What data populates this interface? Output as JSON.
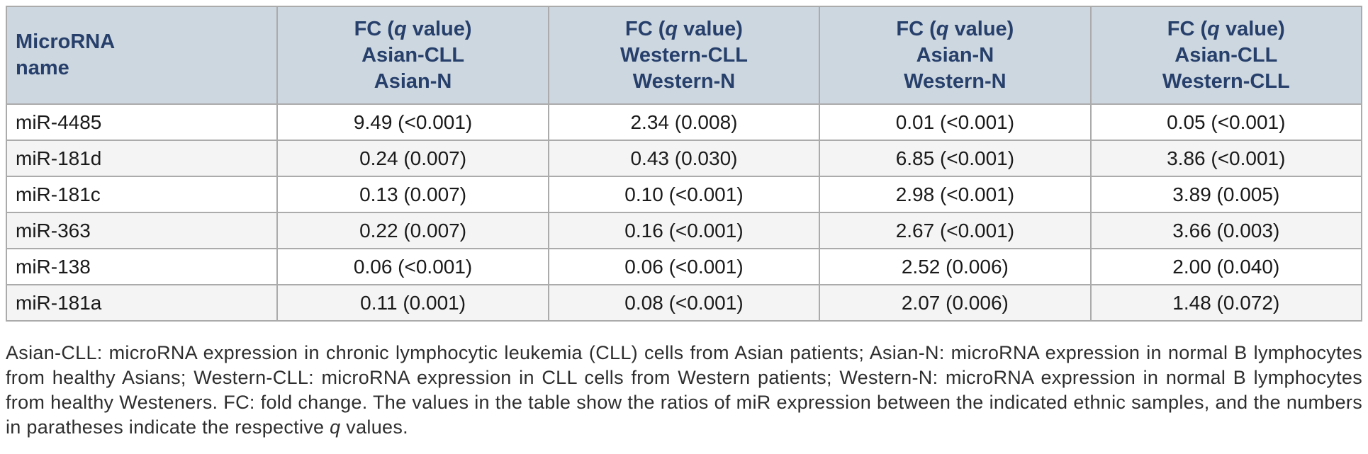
{
  "colors": {
    "header_bg": "#cdd7e0",
    "header_text": "#27406b",
    "border": "#ababab",
    "row_alt_bg": "#f4f4f4",
    "body_text": "#1a1a1a",
    "page_bg": "#ffffff"
  },
  "table": {
    "header": {
      "name_col": {
        "line1": "MicroRNA",
        "line2": "name"
      },
      "fc_label": {
        "pre": "FC (",
        "q": "q",
        "post": " value)"
      },
      "fc_cols": [
        {
          "numerator": "Asian-CLL",
          "denominator": "Asian-N"
        },
        {
          "numerator": "Western-CLL",
          "denominator": "Western-N"
        },
        {
          "numerator": "Asian-N",
          "denominator": "Western-N"
        },
        {
          "numerator": "Asian-CLL",
          "denominator": "Western-CLL"
        }
      ]
    },
    "rows": [
      {
        "name": "miR-4485",
        "values": [
          "9.49 (<0.001)",
          "2.34 (0.008)",
          "0.01 (<0.001)",
          "0.05 (<0.001)"
        ]
      },
      {
        "name": "miR-181d",
        "values": [
          "0.24 (0.007)",
          "0.43 (0.030)",
          "6.85 (<0.001)",
          "3.86 (<0.001)"
        ]
      },
      {
        "name": "miR-181c",
        "values": [
          "0.13 (0.007)",
          "0.10 (<0.001)",
          "2.98 (<0.001)",
          "3.89 (0.005)"
        ]
      },
      {
        "name": "miR-363",
        "values": [
          "0.22 (0.007)",
          "0.16 (<0.001)",
          "2.67 (<0.001)",
          "3.66 (0.003)"
        ]
      },
      {
        "name": "miR-138",
        "values": [
          "0.06 (<0.001)",
          "0.06 (<0.001)",
          "2.52 (0.006)",
          "2.00 (0.040)"
        ]
      },
      {
        "name": "miR-181a",
        "values": [
          "0.11 (0.001)",
          "0.08 (<0.001)",
          "2.07 (0.006)",
          "1.48 (0.072)"
        ]
      }
    ]
  },
  "footnote": {
    "segments": [
      {
        "text": "Asian-CLL: microRNA expression in chronic lymphocytic leukemia (CLL) cells from Asian patients; Asian-N: microRNA expression in normal B lymphocytes from healthy Asians; Western-CLL: microRNA expression in CLL cells from Western patients; Western-N: microRNA expression in normal B lymphocytes from healthy Westeners. FC: fold change. The values in the table show the ratios of miR expression between the indicated ethnic samples, and the numbers in paratheses indicate the respective ",
        "italic": false
      },
      {
        "text": "q",
        "italic": true
      },
      {
        "text": " values.",
        "italic": false
      }
    ]
  },
  "chart_data": {
    "type": "table",
    "columns": [
      "MicroRNA name",
      "FC (q value) Asian-CLL / Asian-N",
      "FC (q value) Western-CLL / Western-N",
      "FC (q value) Asian-N / Western-N",
      "FC (q value) Asian-CLL / Western-CLL"
    ],
    "rows": [
      [
        "miR-4485",
        "9.49 (<0.001)",
        "2.34 (0.008)",
        "0.01 (<0.001)",
        "0.05 (<0.001)"
      ],
      [
        "miR-181d",
        "0.24 (0.007)",
        "0.43 (0.030)",
        "6.85 (<0.001)",
        "3.86 (<0.001)"
      ],
      [
        "miR-181c",
        "0.13 (0.007)",
        "0.10 (<0.001)",
        "2.98 (<0.001)",
        "3.89 (0.005)"
      ],
      [
        "miR-363",
        "0.22 (0.007)",
        "0.16 (<0.001)",
        "2.67 (<0.001)",
        "3.66 (0.003)"
      ],
      [
        "miR-138",
        "0.06 (<0.001)",
        "0.06 (<0.001)",
        "2.52 (0.006)",
        "2.00 (0.040)"
      ],
      [
        "miR-181a",
        "0.11 (0.001)",
        "0.08 (<0.001)",
        "2.07 (0.006)",
        "1.48 (0.072)"
      ]
    ]
  }
}
